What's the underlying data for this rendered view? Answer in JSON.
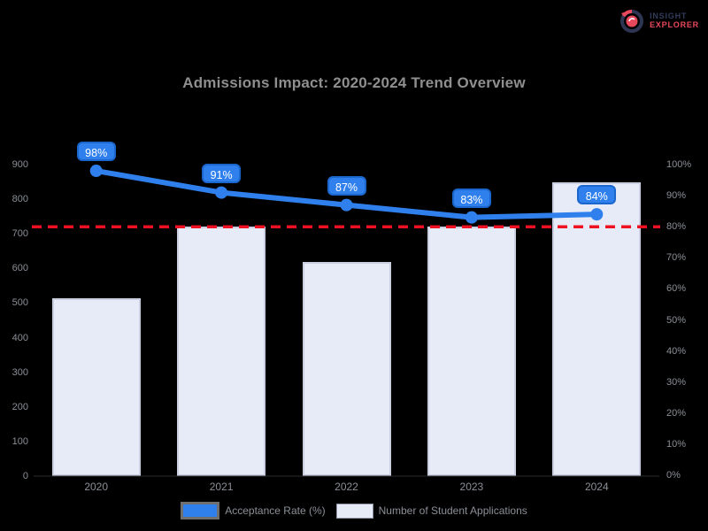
{
  "logo": {
    "icon": "compass-pie-logo-icon",
    "line1": "INSIGHT",
    "line2": "EXPLORER",
    "navy": "#323c5c",
    "crimson": "#e8485c"
  },
  "chart_data": {
    "type": "bar+line",
    "title": "Admissions Impact: 2020-2024 Trend Overview",
    "categories": [
      "2020",
      "2021",
      "2022",
      "2023",
      "2024"
    ],
    "series": [
      {
        "name": "Acceptance Rate (%)",
        "type": "line",
        "axis": "right",
        "color": "#2f80ed",
        "values": [
          98,
          91,
          87,
          83,
          84
        ],
        "point_labels": [
          "98%",
          "91%",
          "87%",
          "83%",
          "84%"
        ]
      },
      {
        "name": "Number of Student Applications",
        "type": "bar",
        "axis": "left",
        "color": "#e7ebf7",
        "border_color": "#c9cfe0",
        "values": [
          515,
          720,
          620,
          720,
          850
        ]
      }
    ],
    "left_axis": {
      "min": 0,
      "max": 900,
      "step": 100,
      "ticks": [
        "900",
        "800",
        "700",
        "600",
        "500",
        "400",
        "300",
        "200",
        "100",
        "0"
      ]
    },
    "right_axis": {
      "min": 0,
      "max": 100,
      "step": 10,
      "ticks": [
        "100%",
        "90%",
        "80%",
        "70%",
        "60%",
        "50%",
        "40%",
        "30%",
        "20%",
        "10%",
        "0%"
      ]
    },
    "threshold_line": {
      "axis": "right",
      "value": 80,
      "color": "#ee1122",
      "style": "dashed"
    },
    "legend_position": "bottom",
    "grid": false,
    "background": "#000000"
  }
}
